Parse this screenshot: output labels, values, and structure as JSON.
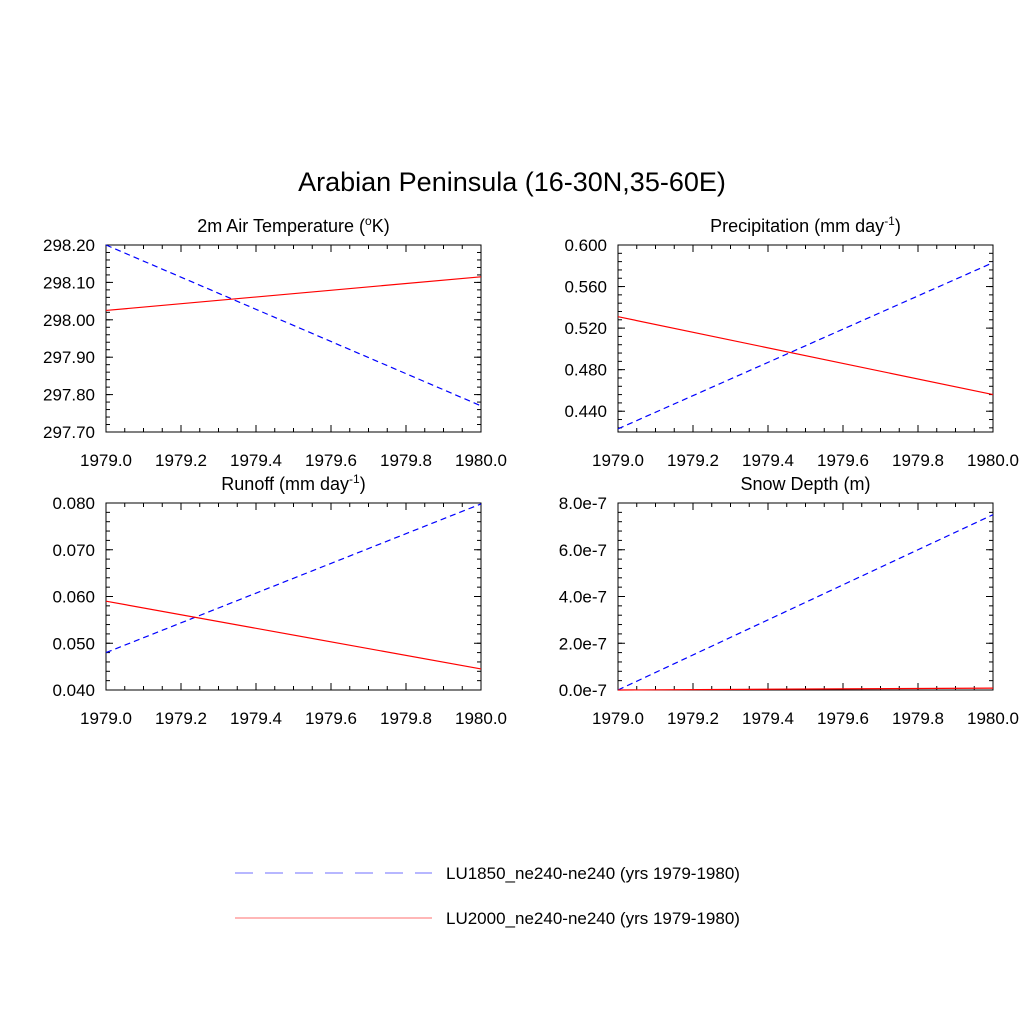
{
  "title": "Arabian Peninsula (16-30N,35-60E)",
  "colors": {
    "series_1850": "#0000ff",
    "series_2000": "#ff0000",
    "axes": "#000000"
  },
  "legend": {
    "placement": "bottom-center",
    "items": [
      {
        "label": "LU1850_ne240-ne240 (yrs 1979-1980)",
        "color": "#0000ff",
        "dash": true
      },
      {
        "label": "LU2000_ne240-ne240 (yrs 1979-1980)",
        "color": "#ff0000",
        "dash": false
      }
    ]
  },
  "chart_data": [
    {
      "type": "line",
      "title_main": "2m Air Temperature (",
      "title_sup": "o",
      "title_tail": "K)",
      "xlim": [
        1979.0,
        1980.0
      ],
      "ylim": [
        297.7,
        298.2
      ],
      "xticks": [
        "1979.0",
        "1979.2",
        "1979.4",
        "1979.6",
        "1979.8",
        "1980.0"
      ],
      "yticks": [
        "297.70",
        "297.80",
        "297.90",
        "298.00",
        "298.10",
        "298.20"
      ],
      "series": [
        {
          "x": [
            1979.0,
            1980.0
          ],
          "values": [
            298.2,
            297.77
          ],
          "color": "#0000ff",
          "dash": true
        },
        {
          "x": [
            1979.0,
            1980.0
          ],
          "values": [
            298.025,
            298.115
          ],
          "color": "#ff0000",
          "dash": false
        }
      ]
    },
    {
      "type": "line",
      "title_main": "Precipitation (mm day",
      "title_sup": "-1",
      "title_tail": ")",
      "xlim": [
        1979.0,
        1980.0
      ],
      "ylim": [
        0.42,
        0.6
      ],
      "xticks": [
        "1979.0",
        "1979.2",
        "1979.4",
        "1979.6",
        "1979.8",
        "1980.0"
      ],
      "yticks": [
        "0.440",
        "0.480",
        "0.520",
        "0.560",
        "0.600"
      ],
      "series": [
        {
          "x": [
            1979.0,
            1980.0
          ],
          "values": [
            0.423,
            0.583
          ],
          "color": "#0000ff",
          "dash": true
        },
        {
          "x": [
            1979.0,
            1980.0
          ],
          "values": [
            0.531,
            0.456
          ],
          "color": "#ff0000",
          "dash": false
        }
      ]
    },
    {
      "type": "line",
      "title_main": "Runoff (mm day",
      "title_sup": "-1",
      "title_tail": ")",
      "xlim": [
        1979.0,
        1980.0
      ],
      "ylim": [
        0.04,
        0.08
      ],
      "xticks": [
        "1979.0",
        "1979.2",
        "1979.4",
        "1979.6",
        "1979.8",
        "1980.0"
      ],
      "yticks": [
        "0.040",
        "0.050",
        "0.060",
        "0.070",
        "0.080"
      ],
      "series": [
        {
          "x": [
            1979.0,
            1980.0
          ],
          "values": [
            0.048,
            0.0798
          ],
          "color": "#0000ff",
          "dash": true
        },
        {
          "x": [
            1979.0,
            1980.0
          ],
          "values": [
            0.059,
            0.0445
          ],
          "color": "#ff0000",
          "dash": false
        }
      ]
    },
    {
      "type": "line",
      "title_main": "Snow Depth (m)",
      "title_sup": "",
      "title_tail": "",
      "xlim": [
        1979.0,
        1980.0
      ],
      "ylim": [
        0.0,
        8e-07
      ],
      "xticks": [
        "1979.0",
        "1979.2",
        "1979.4",
        "1979.6",
        "1979.8",
        "1980.0"
      ],
      "yticks": [
        "0.0e-7",
        "2.0e-7",
        "4.0e-7",
        "6.0e-7",
        "8.0e-7"
      ],
      "series": [
        {
          "x": [
            1979.0,
            1980.0
          ],
          "values": [
            0.0,
            7.5e-07
          ],
          "color": "#0000ff",
          "dash": true
        },
        {
          "x": [
            1979.0,
            1980.0
          ],
          "values": [
            0.0,
            8e-09
          ],
          "color": "#ff0000",
          "dash": false
        }
      ]
    }
  ]
}
